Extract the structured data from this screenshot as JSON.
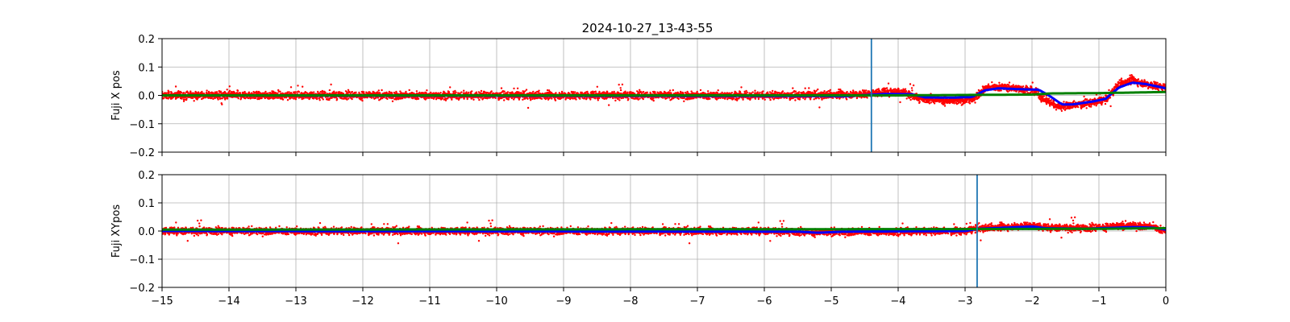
{
  "title": "2024-10-27_13-43-55",
  "colors": {
    "raw": "#ff0000",
    "smooth": "#0000ff",
    "reference": "#008000",
    "marker": "#1f77b4",
    "grid": "#b0b0b0"
  },
  "chart_data": [
    {
      "type": "scatter",
      "ylabel": "Fuji X pos",
      "xlim": [
        -15,
        0
      ],
      "ylim": [
        -0.2,
        0.2
      ],
      "xticks": [
        -15,
        -14,
        -13,
        -12,
        -11,
        -10,
        -9,
        -8,
        -7,
        -6,
        -5,
        -4,
        -3,
        -2,
        -1,
        0
      ],
      "xtick_labels": [
        "",
        "",
        "",
        "",
        "",
        "",
        "",
        "",
        "",
        "",
        "",
        "",
        "",
        "",
        "",
        ""
      ],
      "yticks": [
        -0.2,
        -0.1,
        0.0,
        0.1,
        0.2
      ],
      "ytick_labels": [
        "−0.2",
        "−0.1",
        "0.0",
        "0.1",
        "0.2"
      ],
      "grid": true,
      "vline_x": -4.4,
      "series": [
        {
          "role": "raw",
          "noise": 0.013,
          "x": [
            -15,
            -5.5,
            -4.5,
            -4.2,
            -3.9,
            -3.7,
            -3.2,
            -2.9,
            -2.7,
            -2.5,
            -2.2,
            -1.95,
            -1.85,
            -1.6,
            -1.4,
            -1.1,
            -0.9,
            -0.7,
            -0.5,
            -0.3,
            0
          ],
          "y": [
            0.0,
            0.0,
            0.005,
            0.012,
            0.01,
            -0.01,
            -0.02,
            -0.015,
            0.025,
            0.03,
            0.025,
            0.015,
            -0.01,
            -0.04,
            -0.035,
            -0.025,
            -0.015,
            0.04,
            0.055,
            0.04,
            0.028
          ]
        },
        {
          "role": "smooth",
          "x": [
            -15,
            -5.2,
            -4.8,
            -4.2,
            -3.8,
            -3.6,
            -3.2,
            -2.9,
            -2.7,
            -2.5,
            -2.2,
            -1.9,
            -1.75,
            -1.55,
            -1.4,
            -1.1,
            -0.9,
            -0.7,
            -0.5,
            -0.3,
            0
          ],
          "y": [
            0.0,
            -0.002,
            -0.003,
            0.005,
            0.004,
            -0.007,
            -0.008,
            -0.006,
            0.018,
            0.025,
            0.022,
            0.02,
            0.0,
            -0.032,
            -0.032,
            -0.022,
            -0.012,
            0.028,
            0.045,
            0.04,
            0.025
          ]
        },
        {
          "role": "reference",
          "x": [
            -15,
            -4.0,
            -2.0,
            -1.7,
            -1.0,
            -0.5,
            0
          ],
          "y": [
            0.0,
            0.0,
            0.003,
            0.007,
            0.008,
            0.01,
            0.012
          ]
        }
      ]
    },
    {
      "type": "scatter",
      "ylabel": "Fuji XYpos",
      "xlim": [
        -15,
        0
      ],
      "ylim": [
        -0.2,
        0.2
      ],
      "xticks": [
        -15,
        -14,
        -13,
        -12,
        -11,
        -10,
        -9,
        -8,
        -7,
        -6,
        -5,
        -4,
        -3,
        -2,
        -1,
        0
      ],
      "xtick_labels": [
        "−15",
        "−14",
        "−13",
        "−12",
        "−11",
        "−10",
        "−9",
        "−8",
        "−7",
        "−6",
        "−5",
        "−4",
        "−3",
        "−2",
        "−1",
        "0"
      ],
      "yticks": [
        -0.2,
        -0.1,
        0.0,
        0.1,
        0.2
      ],
      "ytick_labels": [
        "−0.2",
        "−0.1",
        "0.0",
        "0.1",
        "0.2"
      ],
      "grid": true,
      "vline_x": -2.82,
      "series": [
        {
          "role": "raw",
          "noise": 0.012,
          "x": [
            -15,
            -6,
            -5.2,
            -4.8,
            -3.0,
            -2.8,
            -2.4,
            -2.0,
            -1.8,
            -1.2,
            -0.5,
            -0.2,
            0
          ],
          "y": [
            0.0,
            0.0,
            -0.005,
            -0.003,
            0.0,
            0.01,
            0.015,
            0.02,
            0.012,
            0.01,
            0.02,
            0.015,
            0.0
          ]
        },
        {
          "role": "smooth",
          "x": [
            -15,
            -5.5,
            -5.2,
            -4.8,
            -3.0,
            -2.8,
            -2.4,
            -2.0,
            -1.8,
            -1.2,
            -0.5,
            -0.2,
            0
          ],
          "y": [
            0.0,
            -0.002,
            -0.006,
            -0.002,
            0.0,
            0.008,
            0.012,
            0.016,
            0.01,
            0.008,
            0.014,
            0.012,
            0.005
          ]
        },
        {
          "role": "reference",
          "x": [
            -15,
            -3.0,
            -1.0,
            0
          ],
          "y": [
            0.005,
            0.007,
            0.008,
            0.01
          ]
        }
      ]
    }
  ]
}
